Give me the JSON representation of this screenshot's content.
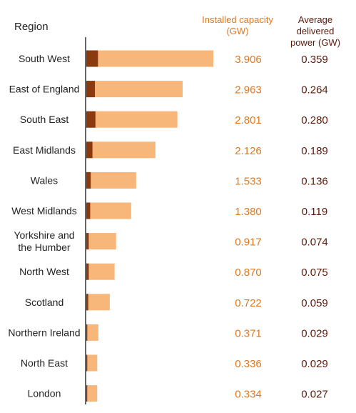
{
  "chart_data": {
    "type": "bar",
    "orientation": "horizontal",
    "stacked_overlay": true,
    "headers": {
      "region": "Region",
      "installed_capacity": [
        "Installed capacity",
        "(GW)"
      ],
      "average_power": [
        "Average delivered",
        "power (GW)"
      ]
    },
    "categories": [
      [
        "South West"
      ],
      [
        "East of England"
      ],
      [
        "South East"
      ],
      [
        "East Midlands"
      ],
      [
        "Wales"
      ],
      [
        "West Midlands"
      ],
      [
        "Yorkshire and",
        "the Humber"
      ],
      [
        "North West"
      ],
      [
        "Scotland"
      ],
      [
        "Northern Ireland"
      ],
      [
        "North East"
      ],
      [
        "London"
      ]
    ],
    "series": [
      {
        "key": "installed_capacity",
        "values": [
          3.906,
          2.963,
          2.801,
          2.126,
          1.533,
          1.38,
          0.917,
          0.87,
          0.722,
          0.371,
          0.336,
          0.334
        ]
      },
      {
        "key": "average_power",
        "values": [
          0.359,
          0.264,
          0.28,
          0.189,
          0.136,
          0.119,
          0.074,
          0.075,
          0.059,
          0.029,
          0.029,
          0.027
        ]
      }
    ],
    "value_labels": {
      "installed_capacity": [
        "3.906",
        "2.963",
        "2.801",
        "2.126",
        "1.533",
        "1.380",
        "0.917",
        "0.870",
        "0.722",
        "0.371",
        "0.336",
        "0.334"
      ],
      "average_power": [
        "0.359",
        "0.264",
        "0.280",
        "0.189",
        "0.136",
        "0.119",
        "0.074",
        "0.075",
        "0.059",
        "0.029",
        "0.029",
        "0.027"
      ]
    },
    "xlim": [
      0,
      3.906
    ],
    "colors": {
      "installed_capacity_bar": "#F7B77B",
      "average_power_bar": "#8A3A0E",
      "installed_capacity_text": "#E0781E",
      "average_power_text": "#5C1A0B",
      "axis": "#333333",
      "label": "#222222"
    }
  }
}
